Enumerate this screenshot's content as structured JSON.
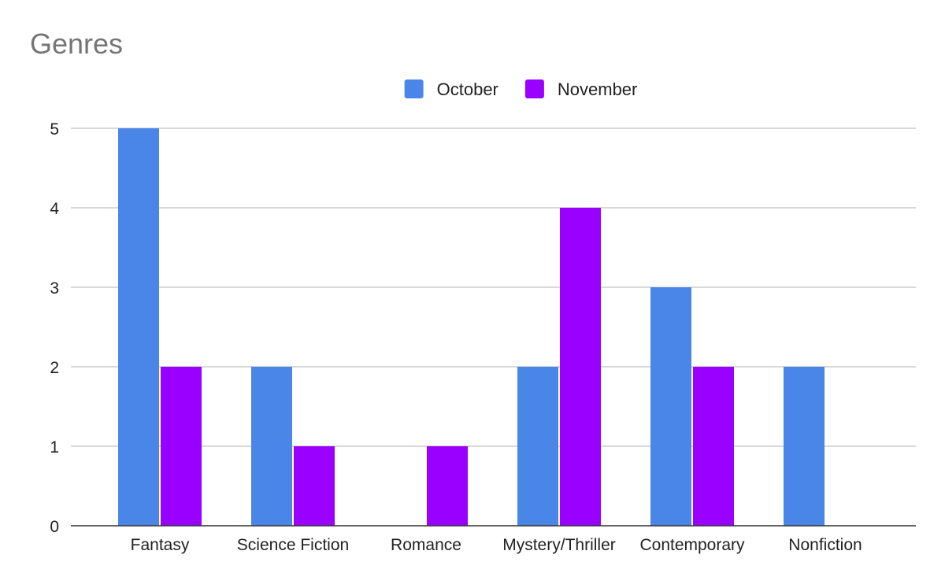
{
  "chart_data": {
    "type": "bar",
    "title": "Genres",
    "xlabel": "",
    "ylabel": "",
    "categories": [
      "Fantasy",
      "Science Fiction",
      "Romance",
      "Mystery/Thriller",
      "Contemporary",
      "Nonfiction"
    ],
    "series": [
      {
        "name": "October",
        "color": "#4a86e8",
        "values": [
          5,
          2,
          0,
          2,
          3,
          2
        ]
      },
      {
        "name": "November",
        "color": "#9900ff",
        "values": [
          2,
          1,
          1,
          4,
          2,
          0
        ]
      }
    ],
    "ylim": [
      0,
      5
    ],
    "yticks": [
      0,
      1,
      2,
      3,
      4,
      5
    ],
    "grid": true,
    "legend_position": "top"
  }
}
